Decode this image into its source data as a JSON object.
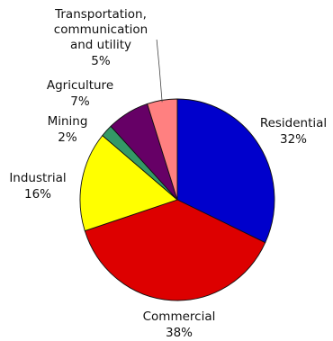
{
  "chart_data": {
    "type": "pie",
    "title": "",
    "start_angle_deg": 0,
    "direction": "clockwise",
    "slices": [
      {
        "label": "Residential",
        "value": 32,
        "pct_label": "32%",
        "color": "#0000CC"
      },
      {
        "label": "Commercial",
        "value": 38,
        "pct_label": "38%",
        "color": "#DD0000"
      },
      {
        "label": "Industrial",
        "value": 16,
        "pct_label": "16%",
        "color": "#FFFF00"
      },
      {
        "label": "Mining",
        "value": 2,
        "pct_label": "2%",
        "color": "#339966"
      },
      {
        "label": "Agriculture",
        "value": 7,
        "pct_label": "7%",
        "color": "#660066"
      },
      {
        "label": "Transportation, communication and utility",
        "label_lines": [
          "Transportation,",
          "communication",
          "and utility"
        ],
        "value": 5,
        "pct_label": "5%",
        "color": "#FF8080"
      }
    ]
  }
}
